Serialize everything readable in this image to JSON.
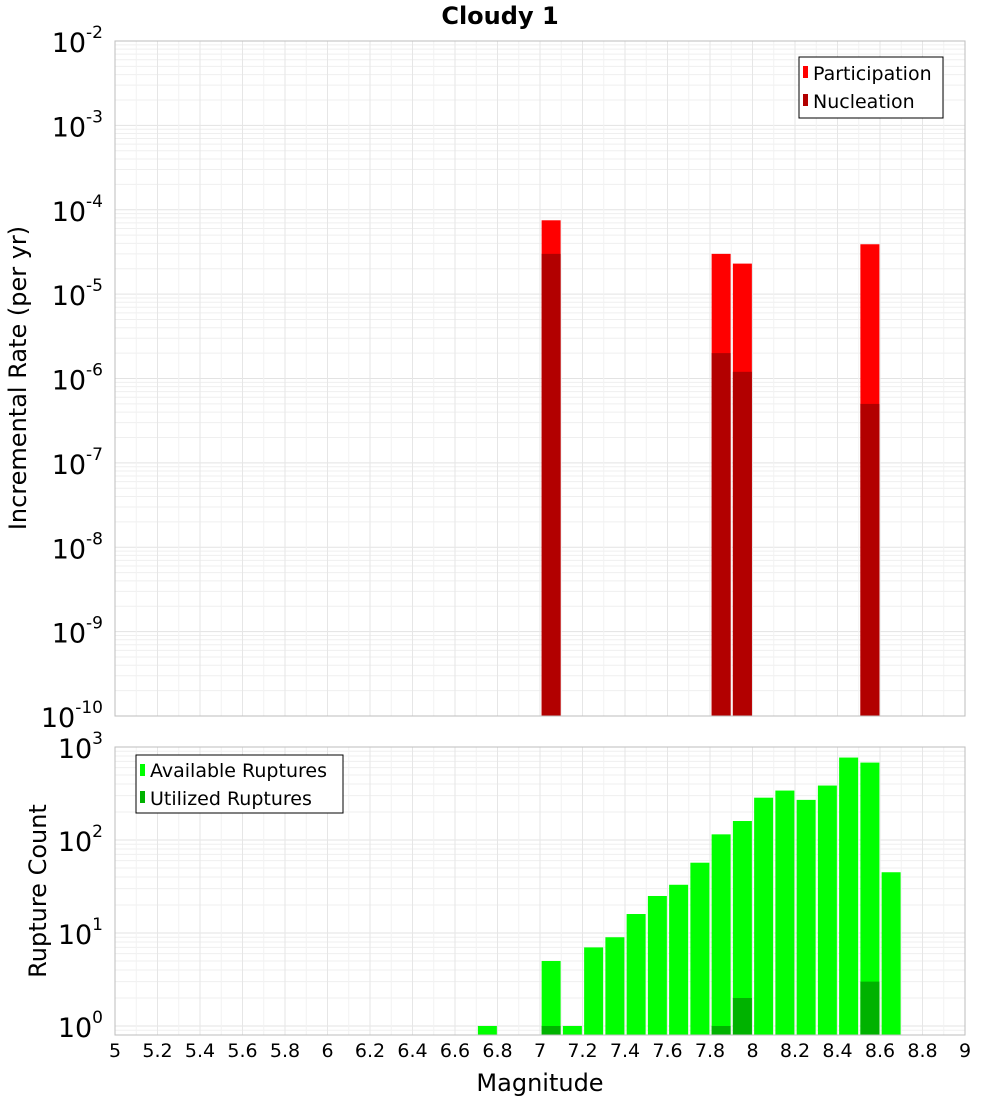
{
  "chart_data": [
    {
      "type": "bar",
      "title": "Cloudy 1",
      "ylabel": "Incremental Rate (per yr)",
      "xlabel": "",
      "y_scale": "log",
      "ylim": [
        1e-10,
        0.01
      ],
      "xlim": [
        5,
        9
      ],
      "y_ticks": [
        {
          "base": "10",
          "exp": "-10",
          "value": 1e-10
        },
        {
          "base": "10",
          "exp": "-9",
          "value": 1e-09
        },
        {
          "base": "10",
          "exp": "-8",
          "value": 1e-08
        },
        {
          "base": "10",
          "exp": "-7",
          "value": 1e-07
        },
        {
          "base": "10",
          "exp": "-6",
          "value": 1e-06
        },
        {
          "base": "10",
          "exp": "-5",
          "value": 1e-05
        },
        {
          "base": "10",
          "exp": "-4",
          "value": 0.0001
        },
        {
          "base": "10",
          "exp": "-3",
          "value": 0.001
        },
        {
          "base": "10",
          "exp": "-2",
          "value": 0.01
        }
      ],
      "grid": true,
      "legend_position": "top-right",
      "series": [
        {
          "name": "Participation",
          "color": "#ff0000",
          "points": [
            {
              "x": 7.05,
              "y": 7.5e-05
            },
            {
              "x": 7.85,
              "y": 3e-05
            },
            {
              "x": 7.95,
              "y": 2.3e-05
            },
            {
              "x": 8.55,
              "y": 3.9e-05
            }
          ]
        },
        {
          "name": "Nucleation",
          "color": "#b20000",
          "points": [
            {
              "x": 7.05,
              "y": 3e-05
            },
            {
              "x": 7.85,
              "y": 2e-06
            },
            {
              "x": 7.95,
              "y": 1.2e-06
            },
            {
              "x": 8.55,
              "y": 5e-07
            }
          ]
        }
      ]
    },
    {
      "type": "bar",
      "title": "",
      "ylabel": "Rupture Count",
      "xlabel": "Magnitude",
      "y_scale": "log",
      "ylim": [
        0.8,
        1000
      ],
      "xlim": [
        5,
        9
      ],
      "x_ticks": [
        "5",
        "5.2",
        "5.4",
        "5.6",
        "5.8",
        "6",
        "6.2",
        "6.4",
        "6.6",
        "6.8",
        "7",
        "7.2",
        "7.4",
        "7.6",
        "7.8",
        "8",
        "8.2",
        "8.4",
        "8.6",
        "8.8",
        "9"
      ],
      "y_ticks": [
        {
          "base": "10",
          "exp": "0",
          "value": 1
        },
        {
          "base": "10",
          "exp": "1",
          "value": 10
        },
        {
          "base": "10",
          "exp": "2",
          "value": 100
        },
        {
          "base": "10",
          "exp": "3",
          "value": 1000
        }
      ],
      "grid": true,
      "legend_position": "top-left",
      "series": [
        {
          "name": "Available Ruptures",
          "color": "#00ff00",
          "points": [
            {
              "x": 6.75,
              "y": 1
            },
            {
              "x": 7.05,
              "y": 5
            },
            {
              "x": 7.15,
              "y": 1
            },
            {
              "x": 7.25,
              "y": 7
            },
            {
              "x": 7.35,
              "y": 9
            },
            {
              "x": 7.45,
              "y": 16
            },
            {
              "x": 7.55,
              "y": 25
            },
            {
              "x": 7.65,
              "y": 33
            },
            {
              "x": 7.75,
              "y": 57
            },
            {
              "x": 7.85,
              "y": 115
            },
            {
              "x": 7.95,
              "y": 160
            },
            {
              "x": 8.05,
              "y": 285
            },
            {
              "x": 8.15,
              "y": 340
            },
            {
              "x": 8.25,
              "y": 270
            },
            {
              "x": 8.35,
              "y": 385
            },
            {
              "x": 8.45,
              "y": 770
            },
            {
              "x": 8.55,
              "y": 680
            },
            {
              "x": 8.65,
              "y": 45
            }
          ]
        },
        {
          "name": "Utilized Ruptures",
          "color": "#00b200",
          "points": [
            {
              "x": 7.05,
              "y": 1
            },
            {
              "x": 7.85,
              "y": 1
            },
            {
              "x": 7.95,
              "y": 2
            },
            {
              "x": 8.55,
              "y": 3
            }
          ]
        }
      ]
    }
  ]
}
